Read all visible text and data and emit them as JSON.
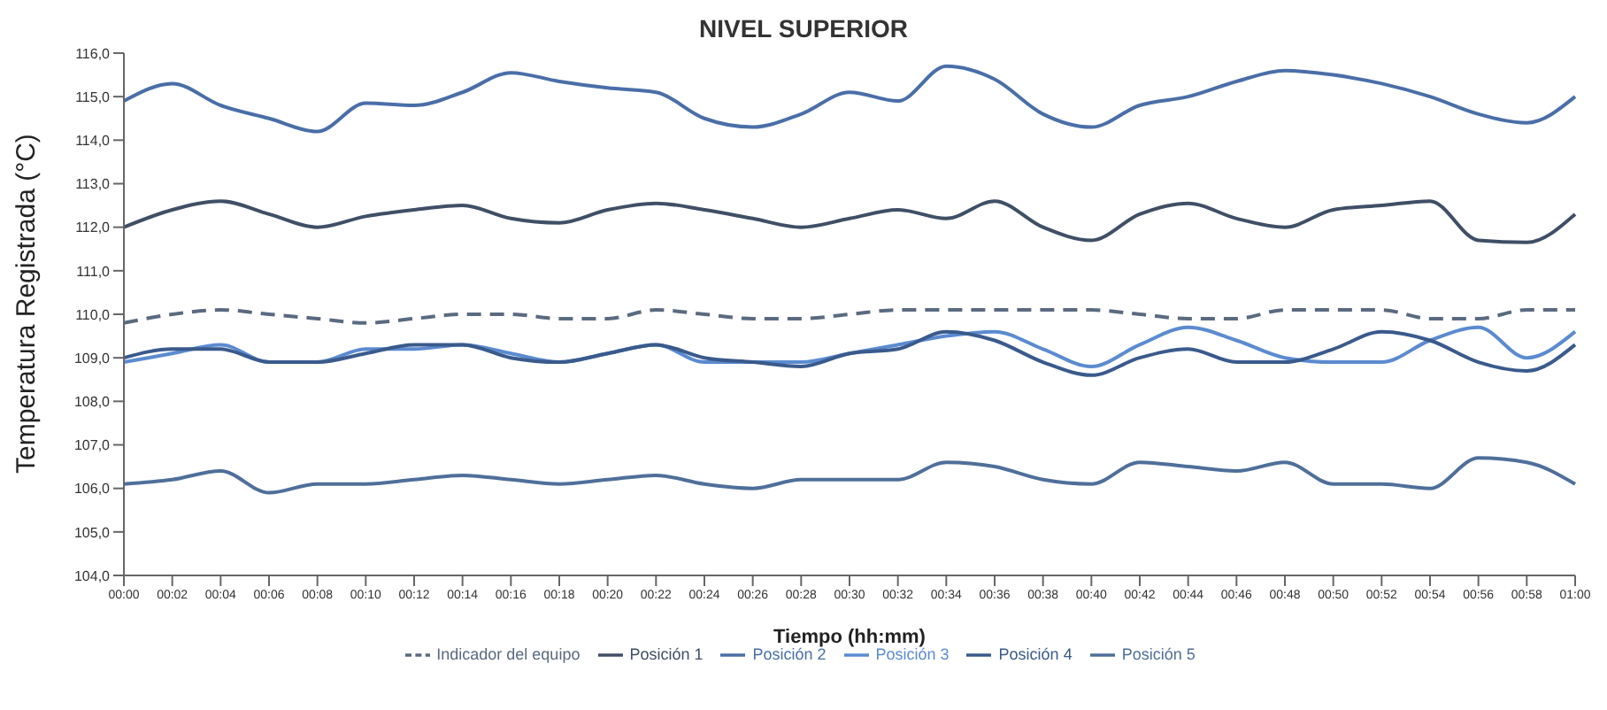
{
  "chart_data": {
    "type": "line",
    "title": "NIVEL SUPERIOR",
    "xlabel": "Tiempo (hh:mm)",
    "ylabel": "Temperatura Registrada (°C)",
    "categories": [
      "00:00",
      "00:02",
      "00:04",
      "00:06",
      "00:08",
      "00:10",
      "00:12",
      "00:14",
      "00:16",
      "00:18",
      "00:20",
      "00:22",
      "00:24",
      "00:26",
      "00:28",
      "00:30",
      "00:32",
      "00:34",
      "00:36",
      "00:38",
      "00:40",
      "00:42",
      "00:44",
      "00:46",
      "00:48",
      "00:50",
      "00:52",
      "00:54",
      "00:56",
      "00:58",
      "01:00"
    ],
    "ylim": [
      104,
      116
    ],
    "yticks": [
      {
        "value": 104,
        "label": "104,0"
      },
      {
        "value": 105,
        "label": "105,0"
      },
      {
        "value": 106,
        "label": "106,0"
      },
      {
        "value": 107,
        "label": "107,0"
      },
      {
        "value": 108,
        "label": "108,0"
      },
      {
        "value": 109,
        "label": "109,0"
      },
      {
        "value": 110,
        "label": "110,0"
      },
      {
        "value": 111,
        "label": "111,0"
      },
      {
        "value": 112,
        "label": "112,0"
      },
      {
        "value": 113,
        "label": "113,0"
      },
      {
        "value": 114,
        "label": "114,0"
      },
      {
        "value": 115,
        "label": "115,0"
      },
      {
        "value": 116,
        "label": "116,0"
      }
    ],
    "grid": false,
    "legend": "bottom",
    "marker": "none",
    "series": [
      {
        "name": "Indicador del equipo",
        "color": "#5a6a80",
        "line_style": "dashed",
        "values": [
          109.8,
          110.0,
          110.1,
          110.0,
          109.9,
          109.8,
          109.9,
          110.0,
          110.0,
          109.9,
          109.9,
          110.1,
          110.0,
          109.9,
          109.9,
          110.0,
          110.1,
          110.1,
          110.1,
          110.1,
          110.1,
          110.0,
          109.9,
          109.9,
          110.1,
          110.1,
          110.1,
          109.9,
          109.9,
          110.1,
          110.1
        ]
      },
      {
        "name": "Posición 1",
        "color": "#3f4f66",
        "values": [
          112.0,
          112.4,
          112.6,
          112.3,
          112.0,
          112.25,
          112.4,
          112.5,
          112.2,
          112.1,
          112.4,
          112.55,
          112.4,
          112.2,
          112.0,
          112.2,
          112.4,
          112.2,
          112.6,
          112.0,
          111.7,
          112.3,
          112.55,
          112.2,
          112.0,
          112.4,
          112.5,
          112.6,
          111.7,
          111.65,
          112.3
        ]
      },
      {
        "name": "Posición 2",
        "color": "#4a6ea8",
        "values": [
          114.9,
          115.3,
          114.8,
          114.5,
          114.2,
          114.85,
          114.8,
          115.1,
          115.55,
          115.35,
          115.2,
          115.1,
          114.5,
          114.3,
          114.6,
          115.1,
          114.9,
          115.7,
          115.4,
          114.6,
          114.3,
          114.8,
          115.0,
          115.35,
          115.6,
          115.5,
          115.3,
          115.0,
          114.6,
          114.4,
          115.0
        ]
      },
      {
        "name": "Posición 3",
        "color": "#5b8bd0",
        "values": [
          108.9,
          109.1,
          109.3,
          108.9,
          108.9,
          109.2,
          109.2,
          109.3,
          109.1,
          108.9,
          109.1,
          109.3,
          108.9,
          108.9,
          108.9,
          109.1,
          109.3,
          109.5,
          109.6,
          109.2,
          108.8,
          109.3,
          109.7,
          109.4,
          109.0,
          108.9,
          108.9,
          109.4,
          109.7,
          109.0,
          109.6
        ]
      },
      {
        "name": "Posición 4",
        "color": "#3a5a8c",
        "values": [
          109.0,
          109.2,
          109.2,
          108.9,
          108.9,
          109.1,
          109.3,
          109.3,
          109.0,
          108.9,
          109.1,
          109.3,
          109.0,
          108.9,
          108.8,
          109.1,
          109.2,
          109.6,
          109.4,
          108.9,
          108.6,
          109.0,
          109.2,
          108.9,
          108.9,
          109.2,
          109.6,
          109.4,
          108.9,
          108.7,
          109.3
        ]
      },
      {
        "name": "Posición 5",
        "color": "#4f6f9a",
        "values": [
          106.1,
          106.2,
          106.4,
          105.9,
          106.1,
          106.1,
          106.2,
          106.3,
          106.2,
          106.1,
          106.2,
          106.3,
          106.1,
          106.0,
          106.2,
          106.2,
          106.2,
          106.6,
          106.5,
          106.2,
          106.1,
          106.6,
          106.5,
          106.4,
          106.6,
          106.1,
          106.1,
          106.0,
          106.7,
          106.6,
          106.1
        ]
      }
    ]
  }
}
